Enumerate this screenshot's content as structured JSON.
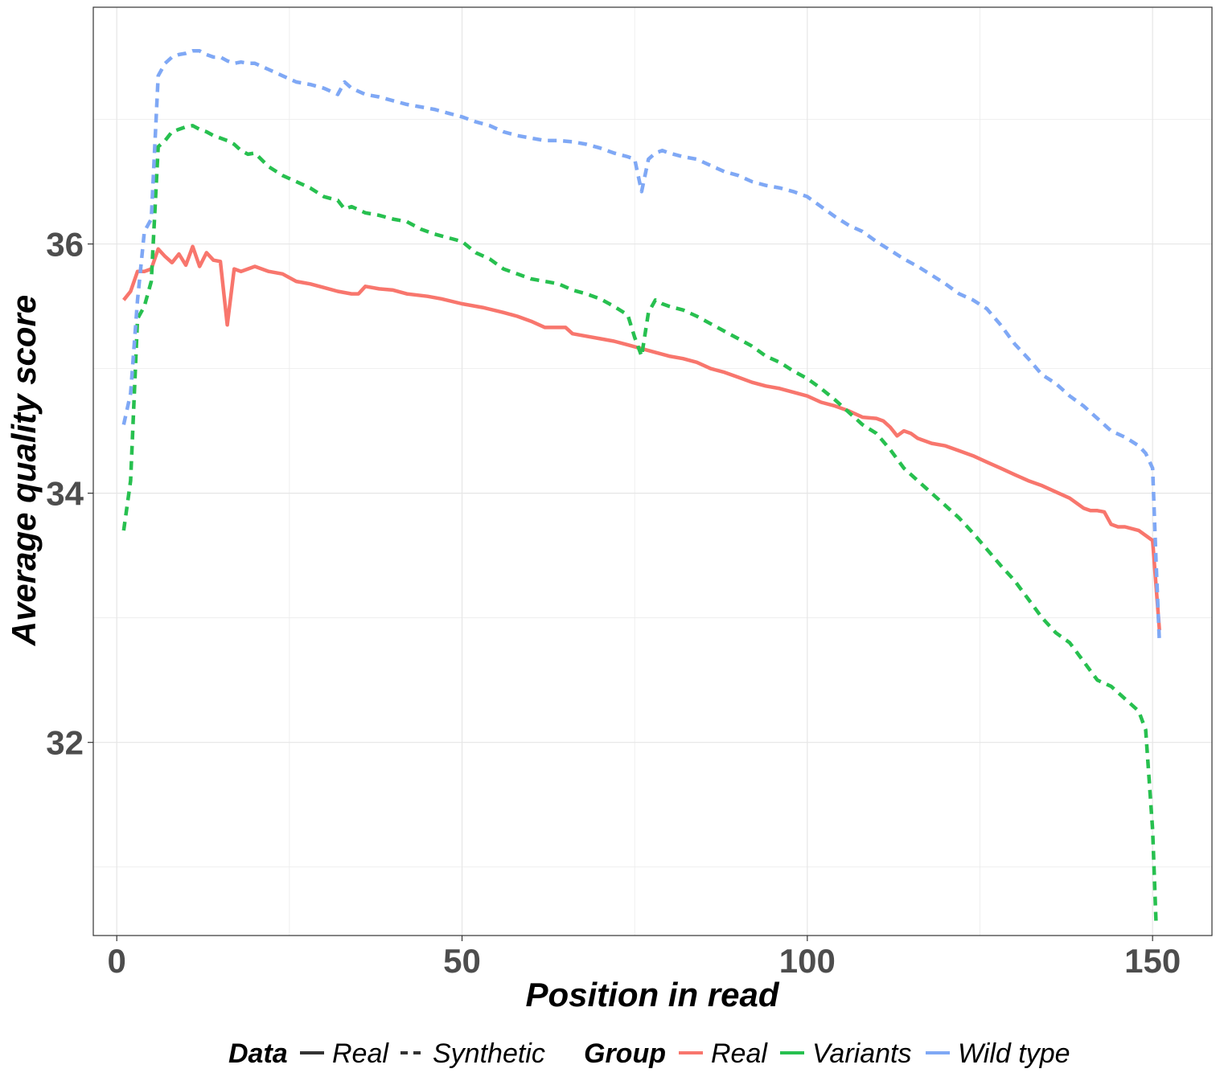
{
  "chart_data": {
    "type": "line",
    "title": "",
    "xlabel": "Position in read",
    "ylabel": "Average quality score",
    "xlim": [
      -3.4,
      158.6
    ],
    "ylim": [
      30.45,
      37.9
    ],
    "x_ticks": [
      0,
      50,
      100,
      150
    ],
    "y_ticks": [
      32,
      34,
      36
    ],
    "grid": true,
    "legend_position": "bottom",
    "legend": {
      "linetype_title": "Data",
      "linetype_entries": [
        "Real",
        "Synthetic"
      ],
      "color_title": "Group",
      "color_entries": [
        "Real",
        "Variants",
        "Wild type"
      ]
    },
    "colors": {
      "Real": "#f8766d",
      "Variants": "#27c04f",
      "Wild type": "#7fa8f5",
      "ink": "#333333"
    },
    "series": [
      {
        "name": "Real",
        "group": "Real",
        "data": "Real",
        "linetype": "solid",
        "x": [
          1,
          2,
          3,
          4,
          5,
          6,
          7,
          8,
          9,
          10,
          11,
          12,
          13,
          14,
          15,
          16,
          17,
          18,
          19,
          20,
          22,
          24,
          26,
          28,
          30,
          32,
          34,
          35,
          36,
          38,
          40,
          42,
          45,
          47,
          50,
          53,
          56,
          58,
          60,
          62,
          63,
          65,
          66,
          68,
          70,
          72,
          74,
          76,
          78,
          80,
          82,
          84,
          86,
          88,
          90,
          92,
          94,
          96,
          98,
          100,
          102,
          104,
          106,
          108,
          110,
          111,
          112,
          113,
          114,
          115,
          116,
          117,
          118,
          120,
          122,
          124,
          126,
          128,
          130,
          132,
          134,
          136,
          138,
          140,
          141,
          142,
          143,
          144,
          145,
          146,
          148,
          150,
          151
        ],
        "y": [
          35.55,
          35.62,
          35.78,
          35.78,
          35.8,
          35.96,
          35.9,
          35.85,
          35.92,
          35.83,
          35.98,
          35.82,
          35.93,
          35.87,
          35.86,
          35.35,
          35.8,
          35.78,
          35.8,
          35.82,
          35.78,
          35.76,
          35.7,
          35.68,
          35.65,
          35.62,
          35.6,
          35.6,
          35.66,
          35.64,
          35.63,
          35.6,
          35.58,
          35.56,
          35.52,
          35.49,
          35.45,
          35.42,
          35.38,
          35.33,
          35.33,
          35.33,
          35.28,
          35.26,
          35.24,
          35.22,
          35.19,
          35.16,
          35.13,
          35.1,
          35.08,
          35.05,
          35.0,
          34.97,
          34.93,
          34.89,
          34.86,
          34.84,
          34.81,
          34.78,
          34.73,
          34.7,
          34.66,
          34.61,
          34.6,
          34.58,
          34.53,
          34.46,
          34.5,
          34.48,
          34.44,
          34.42,
          34.4,
          34.38,
          34.34,
          34.3,
          34.25,
          34.2,
          34.15,
          34.1,
          34.06,
          34.01,
          33.96,
          33.88,
          33.86,
          33.86,
          33.85,
          33.75,
          33.73,
          33.73,
          33.7,
          33.62,
          32.9
        ]
      },
      {
        "name": "Variants",
        "group": "Variants",
        "data": "Synthetic",
        "linetype": "dashed",
        "x": [
          1,
          2,
          3,
          4,
          5,
          6,
          7,
          8,
          9,
          10,
          11,
          12,
          13,
          14,
          15,
          16,
          17,
          18,
          19,
          20,
          22,
          24,
          26,
          28,
          30,
          32,
          33,
          34,
          36,
          38,
          40,
          42,
          44,
          46,
          48,
          50,
          52,
          54,
          56,
          58,
          60,
          62,
          64,
          66,
          68,
          70,
          72,
          74,
          75,
          76,
          77,
          78,
          79,
          80,
          82,
          84,
          86,
          88,
          90,
          92,
          94,
          96,
          98,
          100,
          102,
          104,
          106,
          108,
          110,
          112,
          114,
          116,
          118,
          120,
          122,
          124,
          126,
          128,
          130,
          132,
          134,
          136,
          138,
          140,
          142,
          144,
          146,
          148,
          149,
          150,
          150.5,
          151
        ],
        "y": [
          33.7,
          34.1,
          35.4,
          35.5,
          35.7,
          36.78,
          36.83,
          36.9,
          36.92,
          36.94,
          36.95,
          36.92,
          36.9,
          36.87,
          36.85,
          36.83,
          36.8,
          36.75,
          36.72,
          36.73,
          36.62,
          36.55,
          36.5,
          36.45,
          36.38,
          36.35,
          36.28,
          36.3,
          36.25,
          36.23,
          36.2,
          36.18,
          36.12,
          36.08,
          36.05,
          36.02,
          35.93,
          35.88,
          35.8,
          35.76,
          35.72,
          35.7,
          35.68,
          35.63,
          35.6,
          35.56,
          35.5,
          35.43,
          35.25,
          35.1,
          35.45,
          35.55,
          35.52,
          35.5,
          35.47,
          35.42,
          35.36,
          35.3,
          35.24,
          35.18,
          35.1,
          35.05,
          34.98,
          34.92,
          34.84,
          34.75,
          34.65,
          34.55,
          34.48,
          34.35,
          34.2,
          34.1,
          34.0,
          33.9,
          33.8,
          33.68,
          33.55,
          33.42,
          33.3,
          33.15,
          33.0,
          32.88,
          32.8,
          32.65,
          32.5,
          32.45,
          32.35,
          32.25,
          32.1,
          31.3,
          30.55,
          30.55
        ]
      },
      {
        "name": "Wild type",
        "group": "Wild type",
        "data": "Synthetic",
        "linetype": "dashed",
        "x": [
          1,
          2,
          3,
          4,
          5,
          6,
          7,
          8,
          9,
          10,
          11,
          12,
          13,
          14,
          15,
          16,
          17,
          18,
          19,
          20,
          22,
          24,
          26,
          28,
          30,
          32,
          33,
          34,
          36,
          38,
          40,
          42,
          44,
          46,
          48,
          50,
          52,
          54,
          56,
          58,
          60,
          62,
          64,
          66,
          68,
          70,
          72,
          74,
          75,
          76,
          77,
          78,
          79,
          80,
          82,
          84,
          86,
          88,
          90,
          92,
          94,
          96,
          98,
          100,
          102,
          104,
          106,
          108,
          110,
          112,
          114,
          116,
          118,
          120,
          122,
          124,
          126,
          128,
          130,
          132,
          134,
          136,
          138,
          140,
          142,
          144,
          146,
          148,
          149,
          150,
          150.5,
          151
        ],
        "y": [
          34.55,
          34.8,
          35.55,
          36.1,
          36.2,
          37.35,
          37.45,
          37.5,
          37.52,
          37.53,
          37.55,
          37.55,
          37.52,
          37.5,
          37.5,
          37.47,
          37.45,
          37.46,
          37.45,
          37.45,
          37.4,
          37.35,
          37.3,
          37.28,
          37.25,
          37.2,
          37.3,
          37.25,
          37.2,
          37.18,
          37.15,
          37.12,
          37.1,
          37.08,
          37.05,
          37.02,
          36.98,
          36.95,
          36.9,
          36.87,
          36.85,
          36.83,
          36.83,
          36.82,
          36.8,
          36.77,
          36.73,
          36.7,
          36.68,
          36.42,
          36.68,
          36.73,
          36.75,
          36.73,
          36.7,
          36.68,
          36.63,
          36.58,
          36.55,
          36.5,
          36.47,
          36.45,
          36.42,
          36.38,
          36.3,
          36.22,
          36.15,
          36.1,
          36.02,
          35.95,
          35.88,
          35.82,
          35.75,
          35.68,
          35.6,
          35.55,
          35.48,
          35.35,
          35.2,
          35.08,
          34.95,
          34.88,
          34.78,
          34.7,
          34.6,
          34.5,
          34.45,
          34.38,
          34.32,
          34.2,
          33.45,
          32.8
        ]
      }
    ]
  }
}
